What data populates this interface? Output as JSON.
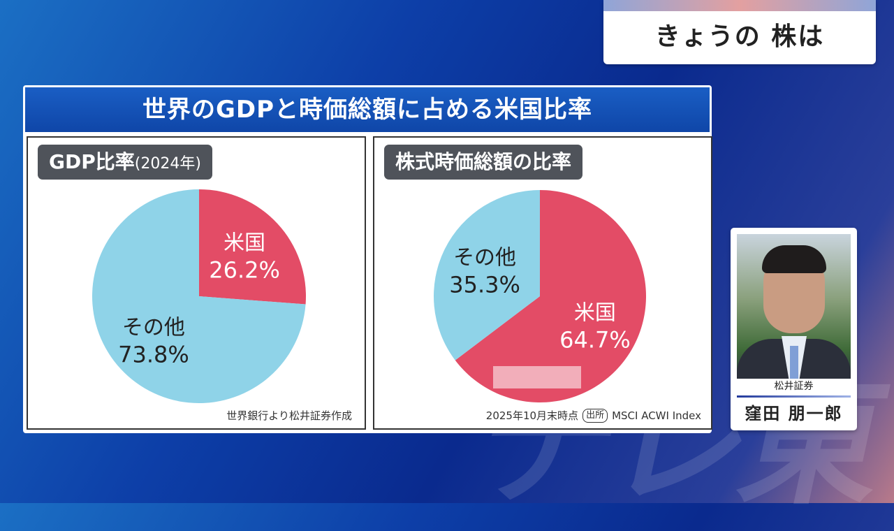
{
  "program": {
    "title": "きょうの 株は"
  },
  "panel": {
    "title": "世界のGDPと時価総額に占める米国比率"
  },
  "chart_data": [
    {
      "type": "pie",
      "title": "GDP比率",
      "title_note": "(2024年)",
      "slices": [
        {
          "label": "米国",
          "value": 26.2,
          "value_label": "26.2%",
          "color": "#e34c66"
        },
        {
          "label": "その他",
          "value": 73.8,
          "value_label": "73.8%",
          "color": "#8fd3e8"
        }
      ],
      "start": "top, clockwise",
      "source": "世界銀行より松井証券作成"
    },
    {
      "type": "pie",
      "title": "株式時価総額の比率",
      "slices": [
        {
          "label": "米国",
          "value": 64.7,
          "value_label": "64.7%",
          "color": "#e34c66"
        },
        {
          "label": "その他",
          "value": 35.3,
          "value_label": "35.3%",
          "color": "#8fd3e8"
        }
      ],
      "start": "top, clockwise",
      "date_note": "2025年10月末時点",
      "source_badge": "出所",
      "source": "MSCI ACWI Index"
    }
  ],
  "person": {
    "company": "松井証券",
    "name": "窪田 朋一郎"
  },
  "watermark": "テレ東"
}
